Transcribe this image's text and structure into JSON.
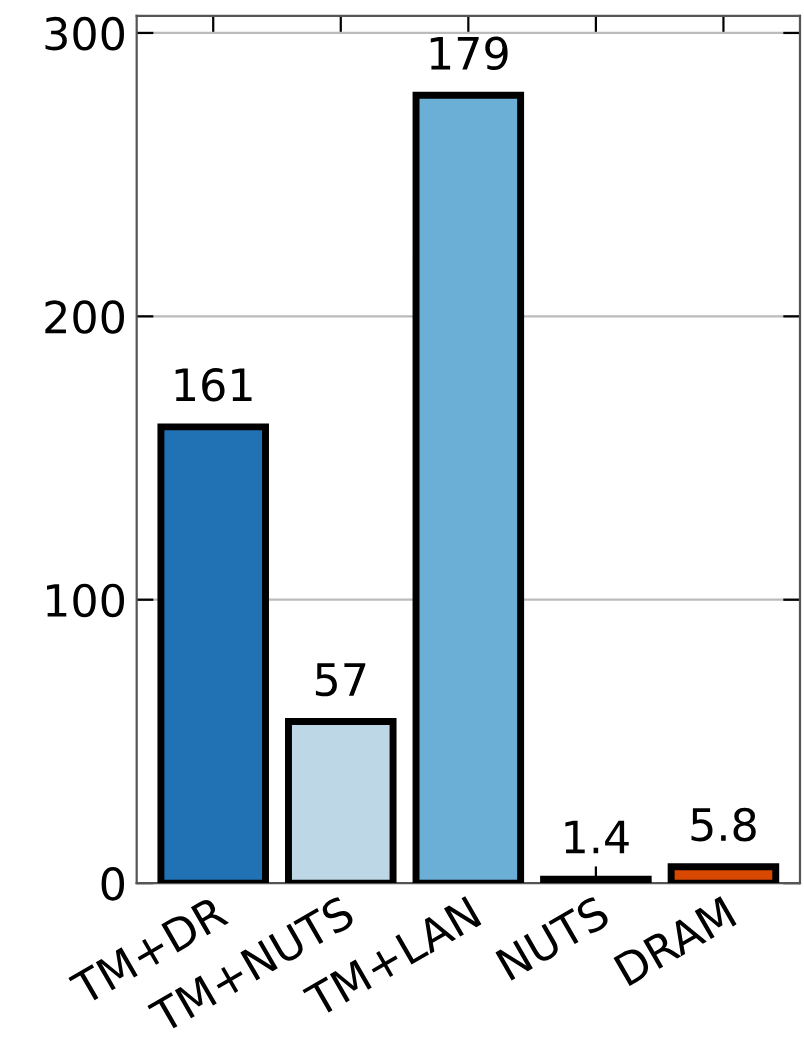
{
  "chart_data": {
    "type": "bar",
    "categories": [
      "TM+DR",
      "TM+NUTS",
      "TM+LAN",
      "NUTS",
      "DRAM"
    ],
    "values": [
      161,
      57,
      278,
      1.4,
      5.8
    ],
    "value_labels": [
      "161",
      "57",
      null,
      "1.4",
      "5.8"
    ],
    "annotations": [
      {
        "text": "179",
        "x": "TM+LAN",
        "y": 278
      }
    ],
    "colors": [
      "#2171b5",
      "#bdd7e7",
      "#6baed6",
      "#2a1a10",
      "#d94801"
    ],
    "ylim": [
      0,
      306
    ],
    "yticks": [
      0,
      100,
      200,
      300
    ],
    "grid": "y",
    "legend": false
  }
}
